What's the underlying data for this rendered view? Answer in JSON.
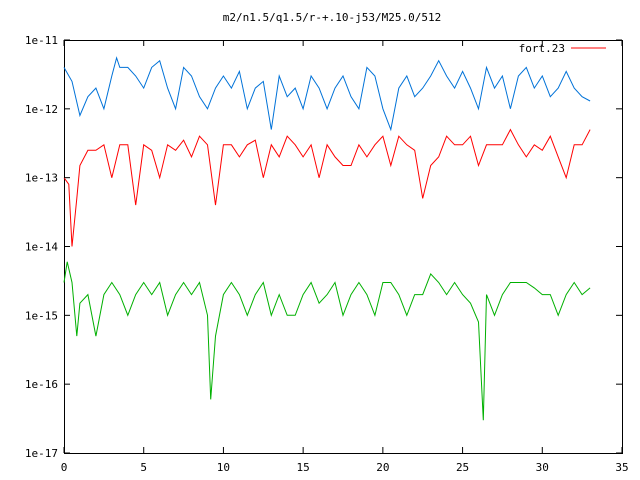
{
  "chart_data": {
    "type": "line",
    "title": "m2/n1.5/q1.5/r-+.10-j53/M25.0/512",
    "xlabel": "",
    "ylabel": "",
    "xlim": [
      0,
      35
    ],
    "ylim": [
      1e-17,
      1e-11
    ],
    "yscale": "log",
    "x_ticks": [
      0,
      5,
      10,
      15,
      20,
      25,
      30,
      35
    ],
    "x_tick_labels": [
      "0",
      "5",
      "10",
      "15",
      "20",
      "25",
      "30",
      "35"
    ],
    "y_ticks": [
      1e-17,
      1e-16,
      1e-15,
      1e-14,
      1e-13,
      1e-12,
      1e-11
    ],
    "y_tick_labels": [
      "1e-17",
      "1e-16",
      "1e-15",
      "1e-14",
      "1e-13",
      "1e-12",
      "1e-11"
    ],
    "grid": false,
    "legend": {
      "position": "top-right",
      "entries": [
        "fort.23"
      ]
    },
    "series": [
      {
        "name": "fort.23",
        "color": "#ff0000",
        "x": [
          0.0,
          0.3,
          0.5,
          0.8,
          1.0,
          1.5,
          2.0,
          2.5,
          3.0,
          3.5,
          4.0,
          4.5,
          5.0,
          5.5,
          6.0,
          6.5,
          7.0,
          7.5,
          8.0,
          8.5,
          9.0,
          9.5,
          10.0,
          10.5,
          11.0,
          11.5,
          12.0,
          12.5,
          13.0,
          13.5,
          14.0,
          14.5,
          15.0,
          15.5,
          16.0,
          16.5,
          17.0,
          17.5,
          18.0,
          18.5,
          19.0,
          19.5,
          20.0,
          20.5,
          21.0,
          21.5,
          22.0,
          22.5,
          23.0,
          23.5,
          24.0,
          24.5,
          25.0,
          25.5,
          26.0,
          26.5,
          27.0,
          27.5,
          28.0,
          28.5,
          29.0,
          29.5,
          30.0,
          30.5,
          31.0,
          31.5,
          32.0,
          32.5,
          33.0
        ],
        "y": [
          1e-13,
          8e-14,
          1e-14,
          5e-14,
          1.5e-13,
          2.5e-13,
          2.5e-13,
          3e-13,
          1e-13,
          3e-13,
          3e-13,
          4e-14,
          3e-13,
          2.5e-13,
          1e-13,
          3e-13,
          2.5e-13,
          3.5e-13,
          2e-13,
          4e-13,
          3e-13,
          4e-14,
          3e-13,
          3e-13,
          2e-13,
          3e-13,
          3.5e-13,
          1e-13,
          3e-13,
          2e-13,
          4e-13,
          3e-13,
          2e-13,
          3e-13,
          1e-13,
          3e-13,
          2e-13,
          1.5e-13,
          1.5e-13,
          3e-13,
          2e-13,
          3e-13,
          4e-13,
          1.5e-13,
          4e-13,
          3e-13,
          2.5e-13,
          5e-14,
          1.5e-13,
          2e-13,
          4e-13,
          3e-13,
          3e-13,
          4e-13,
          1.5e-13,
          3e-13,
          3e-13,
          3e-13,
          5e-13,
          3e-13,
          2e-13,
          3e-13,
          2.5e-13,
          4e-13,
          2e-13,
          1e-13,
          3e-13,
          3e-13,
          5e-13
        ]
      },
      {
        "color": "#0072d8",
        "x": [
          0.0,
          0.5,
          1.0,
          1.5,
          2.0,
          2.5,
          3.0,
          3.3,
          3.5,
          4.0,
          4.5,
          5.0,
          5.5,
          6.0,
          6.5,
          7.0,
          7.5,
          8.0,
          8.5,
          9.0,
          9.5,
          10.0,
          10.5,
          11.0,
          11.5,
          12.0,
          12.5,
          13.0,
          13.5,
          14.0,
          14.5,
          15.0,
          15.5,
          16.0,
          16.5,
          17.0,
          17.5,
          18.0,
          18.5,
          19.0,
          19.5,
          20.0,
          20.5,
          21.0,
          21.5,
          22.0,
          22.5,
          23.0,
          23.5,
          24.0,
          24.5,
          25.0,
          25.5,
          26.0,
          26.5,
          27.0,
          27.5,
          28.0,
          28.5,
          29.0,
          29.5,
          30.0,
          30.5,
          31.0,
          31.5,
          32.0,
          32.5,
          33.0
        ],
        "y": [
          4e-12,
          2.5e-12,
          8e-13,
          1.5e-12,
          2e-12,
          1e-12,
          3e-12,
          5.5e-12,
          4e-12,
          4e-12,
          3e-12,
          2e-12,
          4e-12,
          5e-12,
          2e-12,
          1e-12,
          4e-12,
          3e-12,
          1.5e-12,
          1e-12,
          2e-12,
          3e-12,
          2e-12,
          3.5e-12,
          1e-12,
          2e-12,
          2.5e-12,
          5e-13,
          3e-12,
          1.5e-12,
          2e-12,
          1e-12,
          3e-12,
          2e-12,
          1e-12,
          2e-12,
          3e-12,
          1.5e-12,
          1e-12,
          4e-12,
          3e-12,
          1e-12,
          5e-13,
          2e-12,
          3e-12,
          1.5e-12,
          2e-12,
          3e-12,
          5e-12,
          3e-12,
          2e-12,
          3.5e-12,
          2e-12,
          1e-12,
          4e-12,
          2e-12,
          3e-12,
          1e-12,
          3e-12,
          4e-12,
          2e-12,
          3e-12,
          1.5e-12,
          2e-12,
          3.5e-12,
          2e-12,
          1.5e-12,
          1.3e-12
        ]
      },
      {
        "color": "#00b000",
        "x": [
          0.0,
          0.2,
          0.5,
          0.8,
          1.0,
          1.5,
          2.0,
          2.5,
          3.0,
          3.5,
          4.0,
          4.5,
          5.0,
          5.5,
          6.0,
          6.5,
          7.0,
          7.5,
          8.0,
          8.5,
          9.0,
          9.2,
          9.5,
          10.0,
          10.5,
          11.0,
          11.5,
          12.0,
          12.5,
          13.0,
          13.5,
          14.0,
          14.5,
          15.0,
          15.5,
          16.0,
          16.5,
          17.0,
          17.5,
          18.0,
          18.5,
          19.0,
          19.5,
          20.0,
          20.5,
          21.0,
          21.5,
          22.0,
          22.5,
          23.0,
          23.5,
          24.0,
          24.5,
          25.0,
          25.5,
          26.0,
          26.3,
          26.5,
          27.0,
          27.5,
          28.0,
          28.5,
          29.0,
          29.5,
          30.0,
          30.5,
          31.0,
          31.5,
          32.0,
          32.5,
          33.0
        ],
        "y": [
          3e-15,
          6e-15,
          3e-15,
          5e-16,
          1.5e-15,
          2e-15,
          5e-16,
          2e-15,
          3e-15,
          2e-15,
          1e-15,
          2e-15,
          3e-15,
          2e-15,
          3e-15,
          1e-15,
          2e-15,
          3e-15,
          2e-15,
          3e-15,
          1e-15,
          6e-17,
          5e-16,
          2e-15,
          3e-15,
          2e-15,
          1e-15,
          2e-15,
          3e-15,
          1e-15,
          2e-15,
          1e-15,
          1e-15,
          2e-15,
          3e-15,
          1.5e-15,
          2e-15,
          3e-15,
          1e-15,
          2e-15,
          3e-15,
          2e-15,
          1e-15,
          3e-15,
          3e-15,
          2e-15,
          1e-15,
          2e-15,
          2e-15,
          4e-15,
          3e-15,
          2e-15,
          3e-15,
          2e-15,
          1.5e-15,
          8e-16,
          3e-17,
          2e-15,
          1e-15,
          2e-15,
          3e-15,
          3e-15,
          3e-15,
          2.5e-15,
          2e-15,
          2e-15,
          1e-15,
          2e-15,
          3e-15,
          2e-15,
          2.5e-15
        ]
      }
    ]
  }
}
